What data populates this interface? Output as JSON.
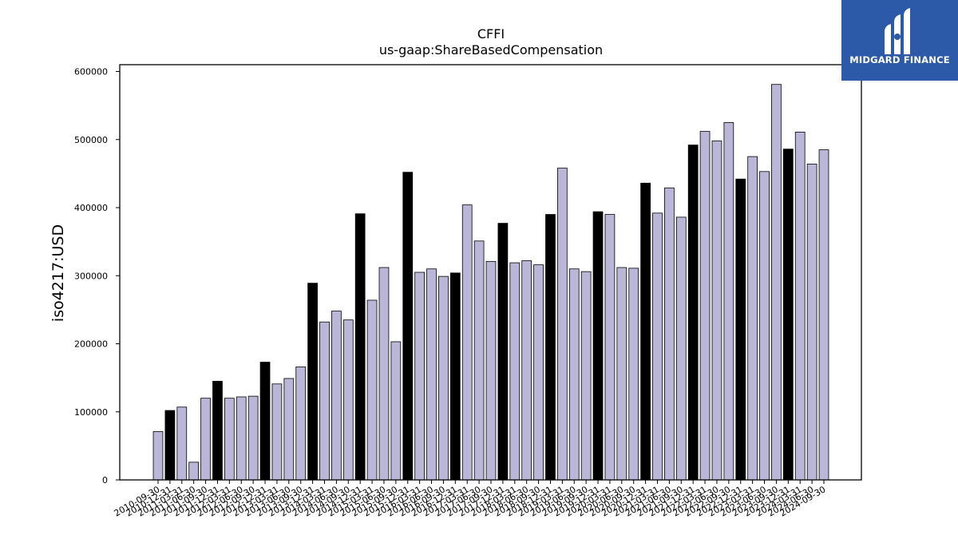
{
  "chart_data": {
    "type": "bar",
    "title": "CFFI",
    "subtitle": "us-gaap:ShareBasedCompensation",
    "ylabel": "iso4217:USD",
    "xlabel": "",
    "ylim": [
      0,
      610000
    ],
    "yticks": [
      0,
      100000,
      200000,
      300000,
      400000,
      500000,
      600000
    ],
    "grid": false,
    "colors": {
      "quarterly": "#b9b6d8",
      "annual": "#000000",
      "edge": "#000000"
    },
    "categories": [
      "2010-09-30",
      "2010-12-31",
      "2011-03-31",
      "2011-06-30",
      "2011-09-30",
      "2011-12-31",
      "2012-03-31",
      "2012-06-30",
      "2012-09-30",
      "2012-12-31",
      "2013-03-31",
      "2013-06-30",
      "2013-09-30",
      "2013-12-31",
      "2014-03-31",
      "2014-06-30",
      "2014-09-30",
      "2014-12-31",
      "2015-03-31",
      "2015-06-30",
      "2015-09-30",
      "2015-12-31",
      "2016-03-31",
      "2016-06-30",
      "2016-09-30",
      "2016-12-31",
      "2017-03-31",
      "2017-06-30",
      "2017-09-30",
      "2017-12-31",
      "2018-03-31",
      "2018-06-30",
      "2018-09-30",
      "2018-12-31",
      "2019-03-31",
      "2019-06-30",
      "2019-09-30",
      "2019-12-31",
      "2020-03-31",
      "2020-06-30",
      "2020-09-30",
      "2020-12-31",
      "2021-03-31",
      "2021-06-30",
      "2021-09-30",
      "2021-12-31",
      "2022-03-31",
      "2022-06-30",
      "2022-09-30",
      "2022-12-31",
      "2023-03-31",
      "2023-06-30",
      "2023-09-30",
      "2023-12-31",
      "2024-03-31",
      "2024-06-30",
      "2024-09-30"
    ],
    "values": [
      71000,
      102000,
      107000,
      26000,
      120000,
      145000,
      120000,
      122000,
      123000,
      173000,
      141000,
      149000,
      166000,
      289000,
      232000,
      248000,
      235000,
      391000,
      264000,
      312000,
      203000,
      452000,
      305000,
      310000,
      299000,
      304000,
      404000,
      351000,
      321000,
      377000,
      319000,
      322000,
      316000,
      390000,
      458000,
      310000,
      306000,
      394000,
      390000,
      312000,
      311000,
      436000,
      392000,
      429000,
      386000,
      492000,
      512000,
      498000,
      525000,
      442000,
      475000,
      453000,
      581000,
      486000,
      511000,
      464000,
      485000
    ],
    "annual_flags": [
      0,
      1,
      0,
      0,
      0,
      1,
      0,
      0,
      0,
      1,
      0,
      0,
      0,
      1,
      0,
      0,
      0,
      1,
      0,
      0,
      0,
      1,
      0,
      0,
      0,
      1,
      0,
      0,
      0,
      1,
      0,
      0,
      0,
      1,
      0,
      0,
      0,
      1,
      0,
      0,
      0,
      1,
      0,
      0,
      0,
      1,
      0,
      0,
      0,
      1,
      0,
      0,
      0,
      1,
      0,
      0,
      0
    ]
  },
  "logo": {
    "text": "MIDGARD FINANCE"
  }
}
